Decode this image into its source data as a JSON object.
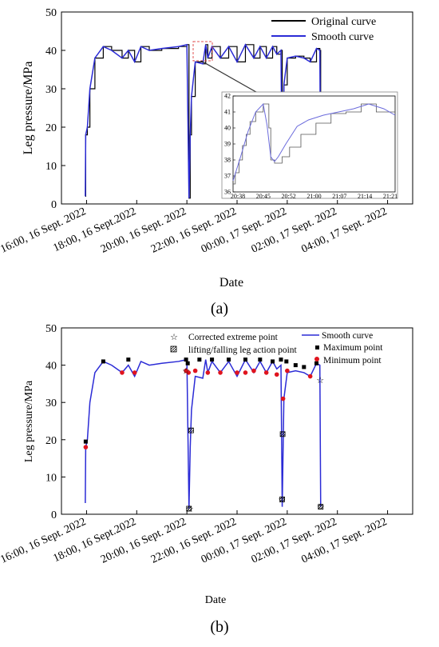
{
  "colors": {
    "original": "#000000",
    "smooth": "#2b2bd6",
    "max": "#000000",
    "min": "#e0141e",
    "zoom_box": "#e05050"
  },
  "chart_data": [
    {
      "type": "line",
      "panel_label": "(a)",
      "xlabel": "Date",
      "ylabel": "Leg pressure/MPa",
      "ylim": [
        0,
        50
      ],
      "yticks": [
        0,
        10,
        20,
        30,
        40,
        50
      ],
      "xlim": [
        "2022-09-16 15:00",
        "2022-09-17 05:00"
      ],
      "xticks": [
        "2022-09-16 16:00",
        "2022-09-16 18:00",
        "2022-09-16 20:00",
        "2022-09-16 22:00",
        "2022-09-17 00:00",
        "2022-09-17 02:00",
        "2022-09-17 04:00"
      ],
      "xtick_labels": [
        "16:00, 16 Sept. 2022",
        "18:00, 16 Sept.2022",
        "20:00, 16 Sept. 2022",
        "22:00, 16 Sept. 2022",
        "00:00, 17 Sept. 2022",
        "02:00, 17 Sept. 2022",
        "04:00, 17 Sept. 2022"
      ],
      "legend_position": "top-right",
      "series": [
        {
          "name": "Original curve",
          "style": "step",
          "x": [
            "2022-09-16 15:57",
            "2022-09-16 15:58",
            "2022-09-16 16:02",
            "2022-09-16 16:08",
            "2022-09-16 16:20",
            "2022-09-16 16:40",
            "2022-09-16 17:00",
            "2022-09-16 17:25",
            "2022-09-16 17:40",
            "2022-09-16 17:55",
            "2022-09-16 18:10",
            "2022-09-16 18:30",
            "2022-09-16 19:00",
            "2022-09-16 19:40",
            "2022-09-16 20:00",
            "2022-09-16 20:05",
            "2022-09-16 20:08",
            "2022-09-16 20:11",
            "2022-09-16 20:20",
            "2022-09-16 20:38",
            "2022-09-16 20:45",
            "2022-09-16 20:50",
            "2022-09-16 21:00",
            "2022-09-16 21:20",
            "2022-09-16 21:40",
            "2022-09-16 22:00",
            "2022-09-16 22:20",
            "2022-09-16 22:40",
            "2022-09-16 22:55",
            "2022-09-16 23:10",
            "2022-09-16 23:25",
            "2022-09-16 23:35",
            "2022-09-16 23:45",
            "2022-09-16 23:48",
            "2022-09-16 23:52",
            "2022-09-17 00:00",
            "2022-09-17 00:20",
            "2022-09-17 00:40",
            "2022-09-17 00:55",
            "2022-09-17 01:10",
            "2022-09-17 01:18",
            "2022-09-17 01:20"
          ],
          "values": [
            2,
            18,
            20,
            30,
            38,
            41,
            40,
            38,
            40,
            37,
            41,
            40,
            40.5,
            41,
            41.5,
            1.5,
            18,
            28,
            37,
            36.5,
            41.5,
            38,
            41,
            38,
            41,
            37,
            41.5,
            38,
            41,
            38,
            41,
            39,
            40,
            4,
            31,
            38,
            38.5,
            38,
            37,
            40.5,
            40,
            2
          ]
        },
        {
          "name": "Smooth curve",
          "style": "line",
          "x": [
            "2022-09-16 15:57",
            "2022-09-16 15:58",
            "2022-09-16 16:02",
            "2022-09-16 16:08",
            "2022-09-16 16:20",
            "2022-09-16 16:40",
            "2022-09-16 17:00",
            "2022-09-16 17:25",
            "2022-09-16 17:40",
            "2022-09-16 17:55",
            "2022-09-16 18:10",
            "2022-09-16 18:30",
            "2022-09-16 19:00",
            "2022-09-16 19:40",
            "2022-09-16 20:00",
            "2022-09-16 20:05",
            "2022-09-16 20:08",
            "2022-09-16 20:11",
            "2022-09-16 20:20",
            "2022-09-16 20:38",
            "2022-09-16 20:45",
            "2022-09-16 20:50",
            "2022-09-16 21:00",
            "2022-09-16 21:20",
            "2022-09-16 21:40",
            "2022-09-16 22:00",
            "2022-09-16 22:20",
            "2022-09-16 22:40",
            "2022-09-16 22:55",
            "2022-09-16 23:10",
            "2022-09-16 23:25",
            "2022-09-16 23:35",
            "2022-09-16 23:45",
            "2022-09-16 23:48",
            "2022-09-16 23:52",
            "2022-09-17 00:00",
            "2022-09-17 00:20",
            "2022-09-17 00:40",
            "2022-09-17 00:55",
            "2022-09-17 01:10",
            "2022-09-17 01:18",
            "2022-09-17 01:20"
          ],
          "values": [
            2,
            18,
            20,
            30,
            38,
            41,
            40,
            38,
            40,
            37,
            41,
            40,
            40.5,
            41,
            41.5,
            1.5,
            18,
            28,
            37,
            36.5,
            41.5,
            38,
            41,
            38,
            41,
            37,
            41.5,
            38,
            41,
            38,
            41,
            39,
            40,
            4,
            31,
            38,
            38.5,
            38,
            37,
            40.5,
            40,
            2
          ]
        }
      ],
      "inset": {
        "xtick_labels": [
          "20:38",
          "20:45",
          "20:52",
          "21:00",
          "21:07",
          "21:14",
          "21:21"
        ],
        "ylim": [
          36,
          42
        ],
        "yticks": [
          36,
          37,
          38,
          39,
          40,
          41,
          42
        ],
        "original_step": {
          "x": [
            0,
            0.6,
            1,
            1.6,
            2,
            2.5,
            3,
            3.5,
            4,
            4.5,
            5,
            6,
            7,
            8,
            9,
            9.5,
            10,
            11,
            12,
            13,
            14,
            15,
            16,
            18,
            20,
            22,
            24,
            26,
            28,
            30,
            32,
            34,
            36,
            38,
            40,
            42,
            43
          ],
          "values": [
            36.5,
            37.2,
            37.2,
            38,
            38,
            38.9,
            38.9,
            39.6,
            39.6,
            40.4,
            40.4,
            41,
            41,
            41.5,
            41.5,
            40,
            38,
            37.8,
            37.8,
            38.2,
            38.2,
            38.8,
            38.8,
            39.6,
            39.6,
            40.3,
            40.3,
            40.9,
            40.9,
            41,
            41,
            41.5,
            41.5,
            41,
            41,
            41,
            41
          ]
        },
        "smooth": {
          "x": [
            0,
            2,
            4,
            6,
            8,
            9,
            10,
            11,
            12,
            14,
            17,
            20,
            24,
            28,
            32,
            36,
            40,
            43
          ],
          "values": [
            36.7,
            38.2,
            39.8,
            41,
            41.5,
            40.2,
            38.2,
            37.9,
            38.2,
            39,
            40.1,
            40.5,
            40.8,
            41,
            41.2,
            41.5,
            41.2,
            40.8
          ]
        }
      }
    },
    {
      "type": "line",
      "panel_label": "(b)",
      "xlabel": "Date",
      "ylabel": "Leg pressure/MPa",
      "ylim": [
        0,
        50
      ],
      "yticks": [
        0,
        10,
        20,
        30,
        40,
        50
      ],
      "xlim": [
        "2022-09-16 15:00",
        "2022-09-17 05:00"
      ],
      "xticks": [
        "2022-09-16 16:00",
        "2022-09-16 18:00",
        "2022-09-16 20:00",
        "2022-09-16 22:00",
        "2022-09-17 00:00",
        "2022-09-17 02:00",
        "2022-09-17 04:00"
      ],
      "xtick_labels": [
        "16:00, 16 Sept. 2022",
        "18:00, 16 Sept.2022",
        "20:00, 16 Sept. 2022",
        "22:00, 16 Sept. 2022",
        "00:00, 17 Sept. 2022",
        "02:00, 17 Sept. 2022",
        "04:00, 17 Sept. 2022"
      ],
      "legend_position": "top",
      "legend": [
        "Corrected extreme point",
        "lifting/falling leg action point",
        "Smooth curve",
        "Maximum point",
        "Minimum point"
      ],
      "series": [
        {
          "name": "Smooth curve",
          "style": "line",
          "x": [
            "2022-09-16 15:57",
            "2022-09-16 15:58",
            "2022-09-16 16:02",
            "2022-09-16 16:08",
            "2022-09-16 16:20",
            "2022-09-16 16:40",
            "2022-09-16 17:00",
            "2022-09-16 17:25",
            "2022-09-16 17:40",
            "2022-09-16 17:55",
            "2022-09-16 18:10",
            "2022-09-16 18:30",
            "2022-09-16 19:00",
            "2022-09-16 19:40",
            "2022-09-16 20:00",
            "2022-09-16 20:05",
            "2022-09-16 20:08",
            "2022-09-16 20:11",
            "2022-09-16 20:20",
            "2022-09-16 20:38",
            "2022-09-16 20:45",
            "2022-09-16 20:50",
            "2022-09-16 21:00",
            "2022-09-16 21:20",
            "2022-09-16 21:40",
            "2022-09-16 22:00",
            "2022-09-16 22:20",
            "2022-09-16 22:40",
            "2022-09-16 22:55",
            "2022-09-16 23:10",
            "2022-09-16 23:25",
            "2022-09-16 23:35",
            "2022-09-16 23:45",
            "2022-09-16 23:48",
            "2022-09-16 23:52",
            "2022-09-17 00:00",
            "2022-09-17 00:20",
            "2022-09-17 00:40",
            "2022-09-17 00:55",
            "2022-09-17 01:10",
            "2022-09-17 01:18",
            "2022-09-17 01:20"
          ],
          "values": [
            3,
            18,
            20,
            30,
            38,
            41,
            40,
            38,
            40,
            37,
            41,
            40,
            40.5,
            41,
            41.5,
            1.5,
            18,
            28,
            37,
            36.5,
            41.5,
            38,
            41,
            38,
            41,
            37,
            41.5,
            38,
            41,
            38,
            41,
            39,
            40,
            2,
            31,
            38,
            38.5,
            38,
            37,
            40.5,
            40,
            2
          ]
        },
        {
          "name": "Maximum point",
          "style": "square",
          "x": [
            "2022-09-16 15:58",
            "2022-09-16 16:40",
            "2022-09-16 17:40",
            "2022-09-16 19:58",
            "2022-09-16 20:02",
            "2022-09-16 20:30",
            "2022-09-16 21:00",
            "2022-09-16 21:40",
            "2022-09-16 22:20",
            "2022-09-16 22:55",
            "2022-09-16 23:25",
            "2022-09-16 23:45",
            "2022-09-16 23:58",
            "2022-09-17 00:20",
            "2022-09-17 00:40",
            "2022-09-17 01:10"
          ],
          "values": [
            19.5,
            41,
            41.5,
            41.5,
            40.5,
            41.5,
            41.5,
            41.5,
            41.5,
            41.5,
            41,
            41.5,
            41,
            40,
            39.5,
            40.5
          ]
        },
        {
          "name": "Minimum point",
          "style": "circle",
          "x": [
            "2022-09-16 15:58",
            "2022-09-16 17:25",
            "2022-09-16 17:55",
            "2022-09-16 19:58",
            "2022-09-16 20:04",
            "2022-09-16 20:20",
            "2022-09-16 20:50",
            "2022-09-16 21:20",
            "2022-09-16 22:00",
            "2022-09-16 22:20",
            "2022-09-16 22:40",
            "2022-09-16 23:10",
            "2022-09-16 23:35",
            "2022-09-16 23:50",
            "2022-09-17 00:00",
            "2022-09-17 00:55"
          ],
          "values": [
            18,
            38,
            38,
            38.5,
            38,
            38.5,
            38,
            38,
            38,
            38,
            38.5,
            38,
            37.5,
            31,
            38.5,
            37
          ]
        },
        {
          "name": "Corrected extreme point",
          "style": "star",
          "x": [
            "2022-09-16 19:58",
            "2022-09-16 20:07",
            "2022-09-16 23:47",
            "2022-09-17 01:20",
            "2022-09-17 01:19"
          ],
          "values": [
            38.5,
            1.5,
            4,
            2,
            36
          ]
        },
        {
          "name": "lifting/falling leg action point",
          "style": "hatched-square",
          "x": [
            "2022-09-16 20:05",
            "2022-09-16 20:10",
            "2022-09-16 23:48",
            "2022-09-16 23:49",
            "2022-09-17 01:20"
          ],
          "values": [
            1.5,
            22.5,
            4,
            21.5,
            2
          ]
        }
      ]
    }
  ]
}
